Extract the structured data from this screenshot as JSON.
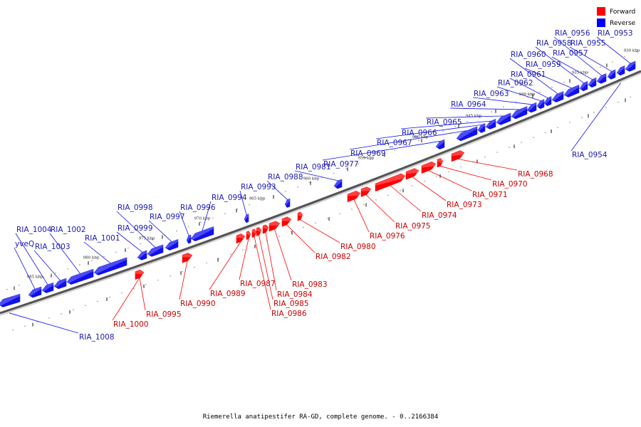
{
  "caption": "Riemerella anatipestifer RA-GD, complete genome. - 0..2166384",
  "legend": [
    {
      "label": "Forward",
      "color": "#ff0000"
    },
    {
      "label": "Reverse",
      "color": "#0000ff"
    }
  ],
  "colors": {
    "forward": "#ff0000",
    "reverse": "#1010ee",
    "forward_text": "#cc0000",
    "reverse_text": "#1a1ab0",
    "backbone": "#555555"
  },
  "kbp_ticks": [
    "930 kbp",
    "935 kbp",
    "940 kbp",
    "945 kbp",
    "950 kbp",
    "955 kbp",
    "960 kbp",
    "965 kbp",
    "970 kbp",
    "975 kbp",
    "980 kbp",
    "985 kbp"
  ],
  "genes_reverse": [
    {
      "name": "RIA_0953"
    },
    {
      "name": "RIA_0954"
    },
    {
      "name": "RIA_0955"
    },
    {
      "name": "RIA_0956"
    },
    {
      "name": "RIA_0957"
    },
    {
      "name": "RIA_0958"
    },
    {
      "name": "RIA_0959"
    },
    {
      "name": "RIA_0960"
    },
    {
      "name": "RIA_0961"
    },
    {
      "name": "RIA_0962"
    },
    {
      "name": "RIA_0963"
    },
    {
      "name": "RIA_0964"
    },
    {
      "name": "RIA_0965"
    },
    {
      "name": "RIA_0966"
    },
    {
      "name": "RIA_0967"
    },
    {
      "name": "RIA_0969"
    },
    {
      "name": "RIA_0977"
    },
    {
      "name": "RIA_0981"
    },
    {
      "name": "RIA_0988"
    },
    {
      "name": "RIA_0993"
    },
    {
      "name": "RIA_0994"
    },
    {
      "name": "RIA_0996"
    },
    {
      "name": "RIA_0997"
    },
    {
      "name": "RIA_0998"
    },
    {
      "name": "RIA_0999"
    },
    {
      "name": "RIA_1001"
    },
    {
      "name": "RIA_1002"
    },
    {
      "name": "RIA_1003"
    },
    {
      "name": "RIA_1004"
    },
    {
      "name": "yveQ"
    },
    {
      "name": "RIA_1008"
    }
  ],
  "genes_forward": [
    {
      "name": "RIA_0968"
    },
    {
      "name": "RIA_0970"
    },
    {
      "name": "RIA_0971"
    },
    {
      "name": "RIA_0973"
    },
    {
      "name": "RIA_0974"
    },
    {
      "name": "RIA_0975"
    },
    {
      "name": "RIA_0976"
    },
    {
      "name": "RIA_0980"
    },
    {
      "name": "RIA_0982"
    },
    {
      "name": "RIA_0983"
    },
    {
      "name": "RIA_0984"
    },
    {
      "name": "RIA_0985"
    },
    {
      "name": "RIA_0986"
    },
    {
      "name": "RIA_0987"
    },
    {
      "name": "RIA_0989"
    },
    {
      "name": "RIA_0990"
    },
    {
      "name": "RIA_0995"
    },
    {
      "name": "RIA_1000"
    }
  ]
}
